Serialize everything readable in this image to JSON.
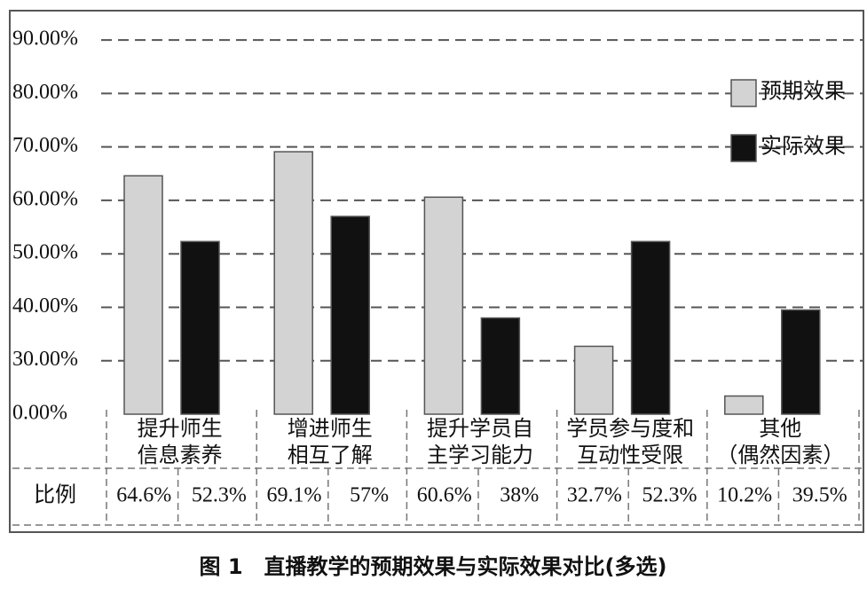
{
  "chart_data": {
    "type": "bar",
    "categories": [
      "提升师生\n信息素养",
      "增进师生\n相互了解",
      "提升学员自\n主学习能力",
      "学员参与度和\n互动性受限",
      "其他\n（偶然因素）"
    ],
    "series": [
      {
        "name": "预期效果",
        "color": "#d3d3d3",
        "values": [
          64.6,
          69.1,
          60.6,
          32.7,
          10.2
        ],
        "value_labels": [
          "64.6%",
          "69.1%",
          "60.6%",
          "32.7%",
          "10.2%"
        ]
      },
      {
        "name": "实际效果",
        "color": "#111111",
        "values": [
          52.3,
          57,
          38,
          52.3,
          39.5
        ],
        "value_labels": [
          "52.3%",
          "57%",
          "38%",
          "52.3%",
          "39.5%"
        ]
      }
    ],
    "ylim": [
      0,
      95
    ],
    "yticks": [
      {
        "value": 0,
        "label": "0.00%"
      },
      {
        "value": 30,
        "label": "30.00%"
      },
      {
        "value": 40,
        "label": "40.00%"
      },
      {
        "value": 50,
        "label": "50.00%"
      },
      {
        "value": 60,
        "label": "60.00%"
      },
      {
        "value": 70,
        "label": "70.00%"
      },
      {
        "value": 80,
        "label": "80.00%"
      },
      {
        "value": 90,
        "label": "90.00%"
      }
    ],
    "grid": true,
    "legend": "upper right",
    "table_row_label": "比例",
    "caption": "图 1　直播教学的预期效果与实际效果对比(多选)"
  }
}
